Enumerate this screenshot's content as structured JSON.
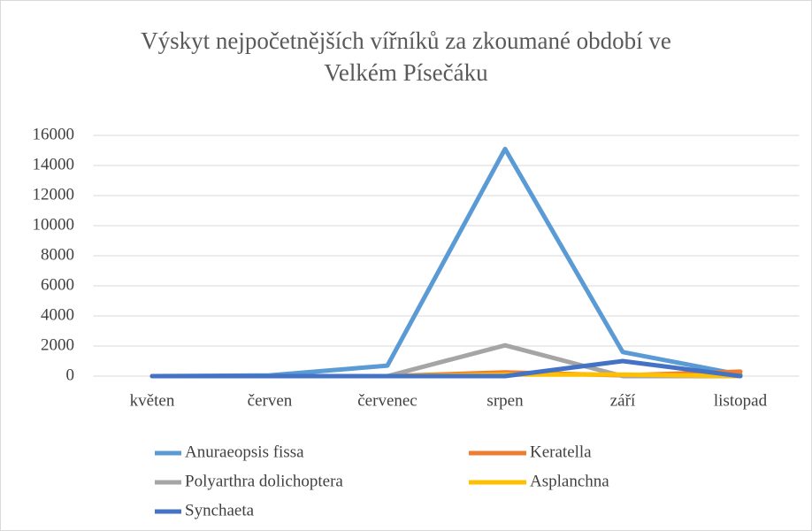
{
  "chart_data": {
    "type": "line",
    "title": "Výskyt nejpočetnějších vířníků za zkoumané období ve Velkém Písečáku",
    "categories": [
      "květen",
      "červen",
      "červenec",
      "srpen",
      "září",
      "listopad"
    ],
    "series": [
      {
        "name": "Anuraeopsis fissa",
        "color": "#5b9bd5",
        "values": [
          0,
          50,
          700,
          15100,
          1600,
          100
        ]
      },
      {
        "name": "Keratella",
        "color": "#ed7d31",
        "values": [
          0,
          0,
          0,
          250,
          50,
          300
        ]
      },
      {
        "name": "Polyarthra dolichoptera",
        "color": "#a5a5a5",
        "values": [
          0,
          0,
          0,
          2050,
          0,
          0
        ]
      },
      {
        "name": "Asplanchna",
        "color": "#ffc000",
        "values": [
          0,
          0,
          0,
          100,
          100,
          0
        ]
      },
      {
        "name": "Synchaeta",
        "color": "#4472c4",
        "values": [
          0,
          0,
          0,
          0,
          1000,
          0
        ]
      }
    ],
    "ylim": [
      0,
      16000
    ],
    "yticks": [
      0,
      2000,
      4000,
      6000,
      8000,
      10000,
      12000,
      14000,
      16000
    ],
    "grid": true,
    "legend": "bottom"
  }
}
